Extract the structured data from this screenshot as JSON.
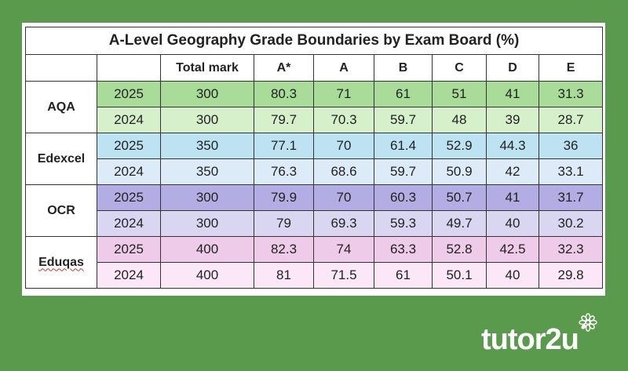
{
  "title": "A-Level Geography Grade Boundaries by Exam Board (%)",
  "columns": [
    "",
    "",
    "Total mark",
    "A*",
    "A",
    "B",
    "C",
    "D",
    "E"
  ],
  "boards": [
    {
      "name": "AQA",
      "colors": [
        "#a9dc98",
        "#d6f0cc"
      ],
      "rows": [
        {
          "year": "2025",
          "total": "300",
          "grades": [
            "80.3",
            "71",
            "61",
            "51",
            "41",
            "31.3"
          ]
        },
        {
          "year": "2024",
          "total": "300",
          "grades": [
            "79.7",
            "70.3",
            "59.7",
            "48",
            "39",
            "28.7"
          ]
        }
      ]
    },
    {
      "name": "Edexcel",
      "colors": [
        "#bde3f3",
        "#ddeaf7"
      ],
      "rows": [
        {
          "year": "2025",
          "total": "350",
          "grades": [
            "77.1",
            "70",
            "61.4",
            "52.9",
            "44.3",
            "36"
          ]
        },
        {
          "year": "2024",
          "total": "350",
          "grades": [
            "76.3",
            "68.6",
            "59.7",
            "50.9",
            "42",
            "33.1"
          ]
        }
      ]
    },
    {
      "name": "OCR",
      "colors": [
        "#b2aee3",
        "#d9d6f2"
      ],
      "rows": [
        {
          "year": "2025",
          "total": "300",
          "grades": [
            "79.9",
            "70",
            "60.3",
            "50.7",
            "41",
            "31.7"
          ]
        },
        {
          "year": "2024",
          "total": "300",
          "grades": [
            "79",
            "69.3",
            "59.3",
            "49.7",
            "40",
            "30.2"
          ]
        }
      ]
    },
    {
      "name": "Eduqas",
      "colors": [
        "#eecbe8",
        "#fbe7f8"
      ],
      "rows": [
        {
          "year": "2025",
          "total": "400",
          "grades": [
            "82.3",
            "74",
            "63.3",
            "52.8",
            "42.5",
            "32.3"
          ]
        },
        {
          "year": "2024",
          "total": "400",
          "grades": [
            "81",
            "71.5",
            "61",
            "50.1",
            "40",
            "29.8"
          ]
        }
      ]
    }
  ],
  "logo": {
    "text": "tutor2u",
    "icon": "flower-icon"
  },
  "colors": {
    "background": "#5a9a4c"
  }
}
